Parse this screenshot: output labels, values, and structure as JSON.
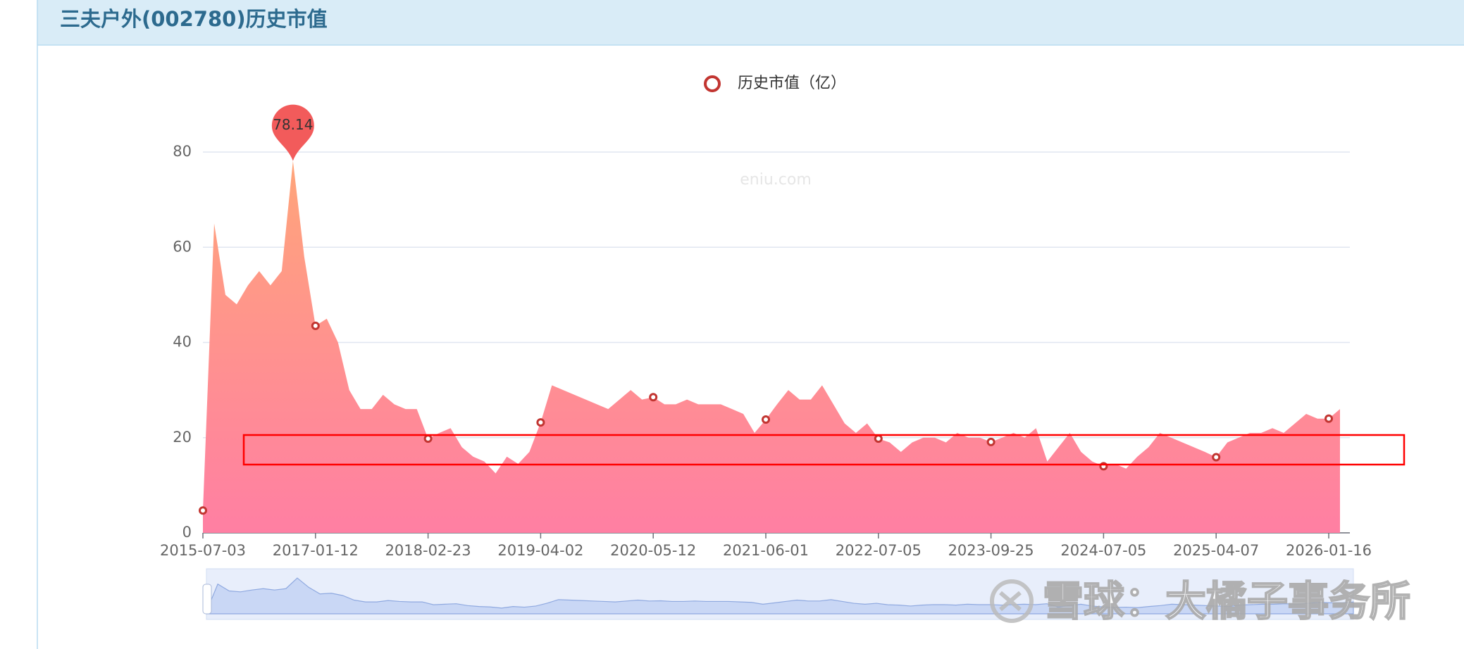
{
  "chart_data": {
    "type": "area",
    "title": "三夫户外(002780)历史市值",
    "watermark": "eniu.com",
    "credit": "雪球：大橘子事务所",
    "categories": [
      "2015-07-03",
      null,
      null,
      null,
      null,
      null,
      null,
      null,
      null,
      null,
      "2017-01-12",
      null,
      null,
      null,
      null,
      null,
      null,
      null,
      null,
      null,
      "2018-02-23",
      null,
      null,
      null,
      null,
      null,
      null,
      null,
      null,
      null,
      "2019-04-02",
      null,
      null,
      null,
      null,
      null,
      null,
      null,
      null,
      null,
      "2020-05-12",
      null,
      null,
      null,
      null,
      null,
      null,
      null,
      null,
      null,
      "2021-06-01",
      null,
      null,
      null,
      null,
      null,
      null,
      null,
      null,
      null,
      "2022-07-05",
      null,
      null,
      null,
      null,
      null,
      null,
      null,
      null,
      null,
      "2023-09-25",
      null,
      null,
      null,
      null,
      null,
      null,
      null,
      null,
      null,
      "2024-07-05",
      null,
      null,
      null,
      null,
      null,
      null,
      null,
      null,
      null,
      "2025-04-07",
      null,
      null,
      null,
      null,
      null,
      null,
      null,
      null,
      null,
      "2026-01-16",
      null
    ],
    "series": [
      {
        "name": "历史市值（亿）",
        "color": "#c23531",
        "values": [
          4.7,
          65,
          50,
          48,
          52,
          55,
          52,
          55,
          78.14,
          58,
          43.5,
          45,
          40,
          30,
          26,
          26,
          29,
          27,
          26,
          26,
          19.8,
          21,
          22,
          18,
          16,
          15,
          12.5,
          16,
          14.5,
          17,
          23.2,
          31,
          30,
          29,
          28,
          27,
          26,
          28,
          30,
          28,
          28.5,
          27,
          27,
          28,
          27,
          27,
          27,
          26,
          25,
          21,
          23.8,
          27,
          30,
          28,
          28,
          31,
          27,
          23,
          21,
          23,
          19.8,
          19,
          17,
          19,
          20,
          20,
          19,
          21,
          20,
          20,
          19.1,
          20,
          21,
          20,
          22,
          15,
          18,
          21,
          17,
          15,
          14,
          14.5,
          13.5,
          16,
          18,
          21,
          20,
          19,
          18,
          17,
          15.9,
          19,
          20,
          21,
          21,
          22,
          21,
          23,
          25,
          24,
          24,
          26
        ],
        "value_labels": [
          null,
          null,
          null,
          null,
          null,
          null,
          null,
          null,
          "78.14",
          null,
          null,
          null,
          null,
          null,
          null,
          null,
          null,
          null,
          null,
          null,
          null,
          null,
          null,
          null,
          null,
          null,
          null,
          null,
          null,
          null,
          null,
          null,
          null,
          null,
          null,
          null,
          null,
          null,
          null,
          null,
          null,
          null,
          null,
          null,
          null,
          null,
          null,
          null,
          null,
          null,
          null,
          null,
          null,
          null,
          null,
          null,
          null,
          null,
          null,
          null,
          null,
          null,
          null,
          null,
          null,
          null,
          null,
          null,
          null,
          null,
          null,
          null,
          null,
          null,
          null,
          null,
          null,
          null,
          null,
          null,
          null,
          null,
          null,
          null,
          null,
          null,
          null,
          null,
          null,
          null,
          null,
          null,
          null,
          null,
          null,
          null,
          null,
          null,
          null,
          null,
          null,
          null
        ]
      }
    ],
    "ylim": [
      0,
      80
    ],
    "yticks": [
      0,
      20,
      40,
      60,
      80
    ],
    "grid": true
  }
}
